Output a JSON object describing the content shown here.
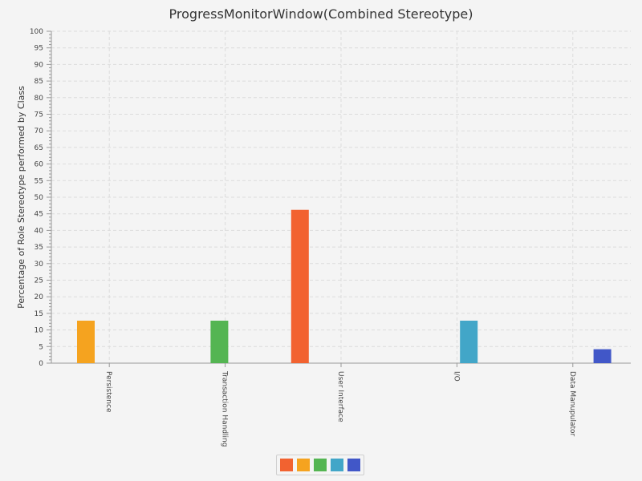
{
  "chart_data": {
    "type": "bar",
    "title": "ProgressMonitorWindow(Combined Stereotype)",
    "ylabel": "Percentage of Role Stereotype performed by Class",
    "xlabel": "",
    "ylim": [
      0,
      100
    ],
    "ytick_major": 5,
    "ytick_minor": 1,
    "grid": true,
    "legend_position": "bottom-center",
    "categories": [
      "Persistence",
      "Transaction Handling",
      "User Interface",
      "I/O",
      "Data Manupulator"
    ],
    "series": [
      {
        "color": "#f26230",
        "values": [
          0,
          0,
          46.2,
          0,
          0
        ]
      },
      {
        "color": "#f5a31f",
        "values": [
          12.8,
          0,
          0,
          0,
          0
        ]
      },
      {
        "color": "#54b552",
        "values": [
          0,
          12.8,
          0,
          0,
          0
        ]
      },
      {
        "color": "#42a6c8",
        "values": [
          0,
          0,
          0,
          12.8,
          0
        ]
      },
      {
        "color": "#4157c8",
        "values": [
          0,
          0,
          0,
          0,
          4.2
        ]
      }
    ]
  }
}
